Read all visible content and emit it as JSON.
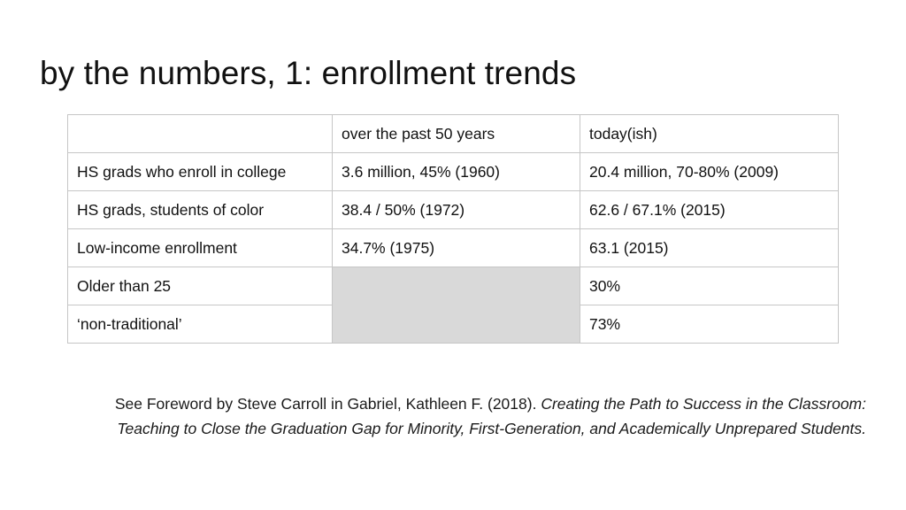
{
  "slide": {
    "title": "by the numbers, 1: enrollment trends"
  },
  "table": {
    "header": [
      "",
      "over the past 50 years",
      "today(ish)"
    ],
    "rows": [
      [
        "HS grads who enroll in college",
        "3.6 million, 45% (1960)",
        "20.4 million, 70-80% (2009)"
      ],
      [
        "HS grads, students of color",
        "38.4 / 50% (1972)",
        "62.6 / 67.1% (2015)"
      ],
      [
        "Low-income enrollment",
        "34.7% (1975)",
        "63.1 (2015)"
      ],
      [
        "Older than 25",
        "",
        "30%"
      ],
      [
        "‘non-traditional’",
        "",
        "73%"
      ]
    ],
    "shaded_cell_color": "#d9d9d9"
  },
  "citation": {
    "prefix": "See Foreword by Steve Carroll in Gabriel, Kathleen F. (2018). ",
    "book_title": "Creating the Path to Success in the Classroom: Teaching to Close the Graduation Gap for Minority, First-Generation, and Academically Unprepared Students."
  }
}
